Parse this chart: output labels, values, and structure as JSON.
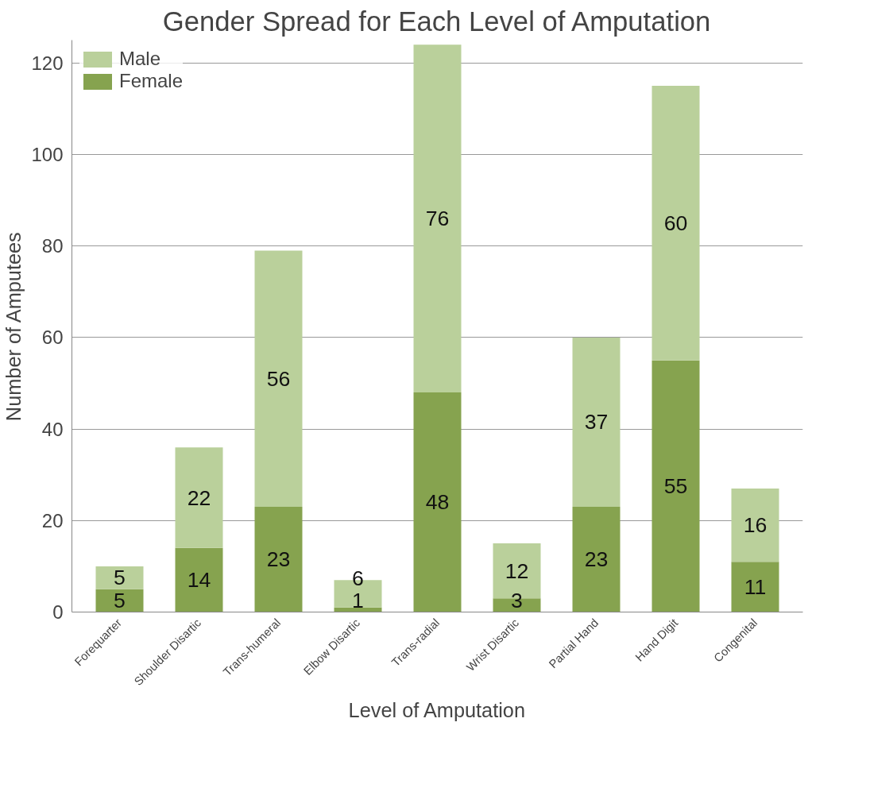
{
  "chart_data": {
    "type": "bar",
    "title": "Gender Spread for Each Level of Amputation",
    "xlabel": "Level of Amputation",
    "ylabel": "Number of Amputees",
    "categories": [
      "Forequarter",
      "Shoulder Disartic",
      "Trans-humeral",
      "Elbow Disartic",
      "Trans-radial",
      "Wrist Disartic",
      "Partial Hand",
      "Hand Digit",
      "Congenital"
    ],
    "series": [
      {
        "name": "Female",
        "color": "#86a34f",
        "values": [
          5,
          14,
          23,
          1,
          48,
          3,
          23,
          55,
          11
        ]
      },
      {
        "name": "Male",
        "color": "#bad09b",
        "values": [
          5,
          22,
          56,
          6,
          76,
          12,
          37,
          60,
          16
        ]
      }
    ],
    "stacked": true,
    "ylim": [
      0,
      125
    ],
    "yticks": [
      0,
      20,
      40,
      60,
      80,
      100,
      120
    ],
    "grid": "y",
    "legend": "top left",
    "data_labels": true
  }
}
